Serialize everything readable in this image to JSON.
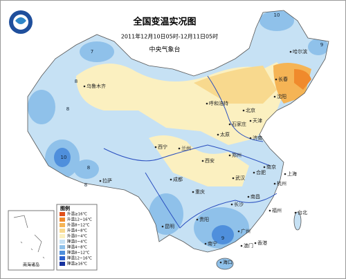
{
  "header": {
    "title": "全国变温实况图",
    "subtitle": "2011年12月10日05时-12月11日05时",
    "issuer": "中央气象台"
  },
  "legend": {
    "title": "图例",
    "items": [
      {
        "label": "升温≥16℃",
        "color": "#e0501a"
      },
      {
        "label": "升温12~16℃",
        "color": "#f08a2c"
      },
      {
        "label": "升温8~12℃",
        "color": "#f5b455"
      },
      {
        "label": "升温4~8℃",
        "color": "#f8d98e"
      },
      {
        "label": "升温0~4℃",
        "color": "#fbf0c0"
      },
      {
        "label": "降温0~4℃",
        "color": "#c6e1f4"
      },
      {
        "label": "降温4~8℃",
        "color": "#8fc1ea"
      },
      {
        "label": "降温8~12℃",
        "color": "#4f8fdc"
      },
      {
        "label": "降温12~16℃",
        "color": "#2a5fcc"
      },
      {
        "label": "降温≥16℃",
        "color": "#17329e"
      }
    ]
  },
  "cities": [
    "哈尔滨",
    "长春",
    "沈阳",
    "乌鲁木齐",
    "呼和浩特",
    "北京",
    "天津",
    "石家庄",
    "太原",
    "济南",
    "西宁",
    "兰州",
    "西安",
    "郑州",
    "合肥",
    "南京",
    "上海",
    "杭州",
    "武汉",
    "成都",
    "重庆",
    "长沙",
    "南昌",
    "福州",
    "台北",
    "拉萨",
    "贵阳",
    "昆明",
    "南宁",
    "广州",
    "香港",
    "澳门",
    "海口"
  ],
  "contour_labels": [
    10,
    9,
    7,
    8,
    8,
    10,
    8,
    8,
    9
  ],
  "inset_label": "南海诸岛"
}
